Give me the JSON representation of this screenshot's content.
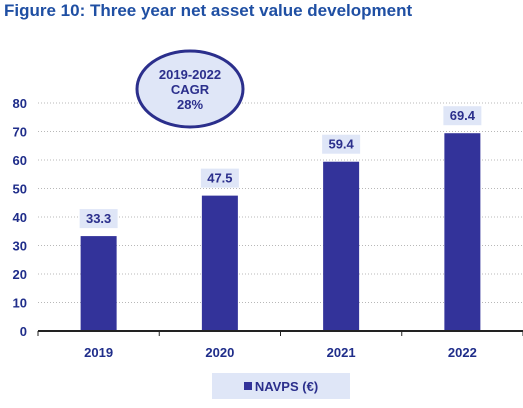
{
  "title": "Figure 10: Three year net asset value development",
  "chart_data": {
    "type": "bar",
    "categories": [
      "2019",
      "2020",
      "2021",
      "2022"
    ],
    "series": [
      {
        "name": "NAVPS (€)",
        "values": [
          33.3,
          47.5,
          59.4,
          69.4
        ],
        "color": "#33339a"
      }
    ],
    "data_labels": [
      "33.3",
      "47.5",
      "59.4",
      "69.4"
    ],
    "ylim": [
      0,
      80
    ],
    "yticks": [
      0,
      10,
      20,
      30,
      40,
      50,
      60,
      70,
      80
    ],
    "xlabel": "",
    "ylabel": "",
    "grid": true,
    "legend_position": "bottom",
    "annotation": {
      "lines": [
        "2019-2022",
        "CAGR",
        "28%"
      ]
    },
    "colors": {
      "bar": "#33339a",
      "label_text": "#2b2f8c",
      "label_bg": "#dfe6f7",
      "annotation_border": "#2b2f8c",
      "annotation_fill": "#dfe6f7",
      "title": "#1f4fa3"
    }
  }
}
